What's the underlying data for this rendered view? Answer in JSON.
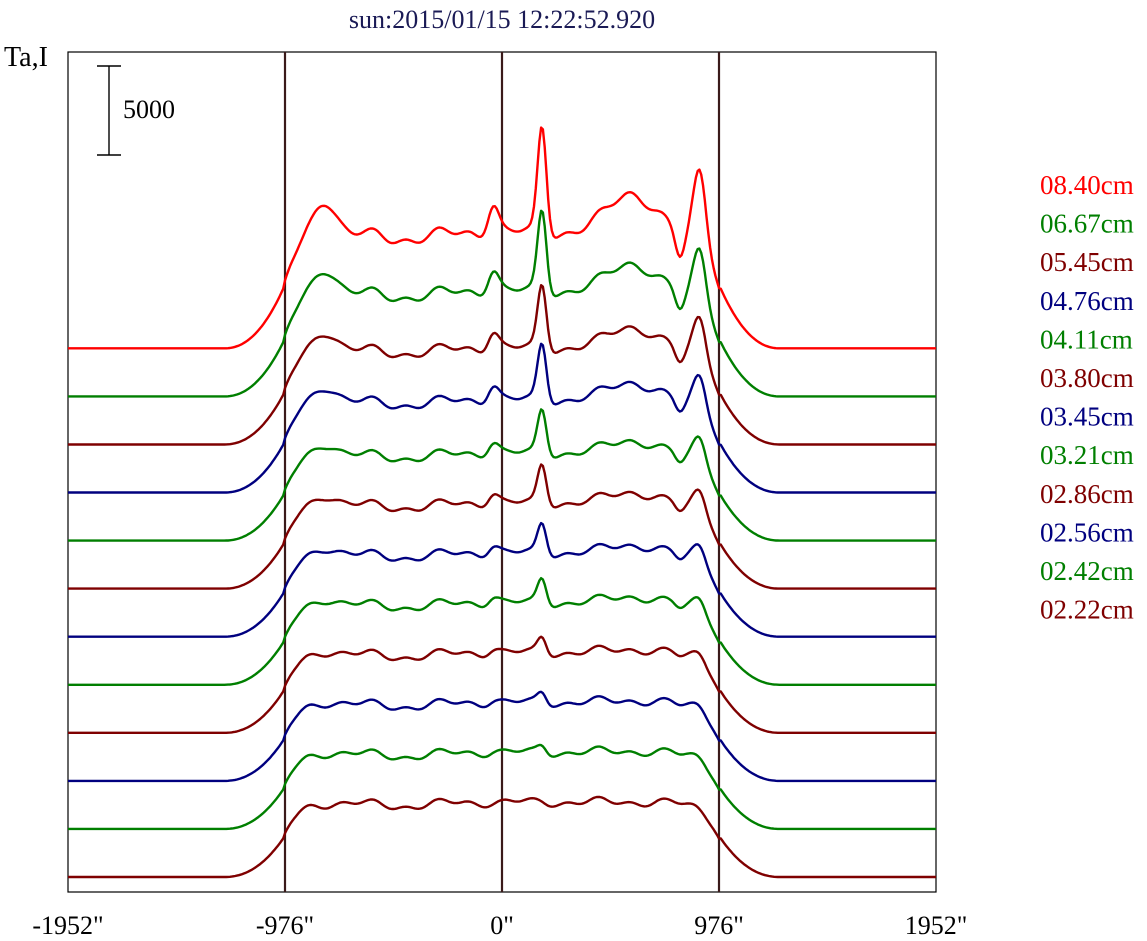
{
  "chart_data": {
    "type": "line",
    "title": "sun:2015/01/15 12:22:52.920",
    "ylabel": "Ta,I",
    "scale_bar_label": "5000",
    "scale_bar_value": 5000,
    "x_ticks": [
      {
        "value": -1952,
        "label": "-1952\""
      },
      {
        "value": -976,
        "label": "-976\""
      },
      {
        "value": 0,
        "label": "0\""
      },
      {
        "value": 976,
        "label": "976\""
      },
      {
        "value": 1952,
        "label": "1952\""
      }
    ],
    "xlim": [
      -1952,
      1952
    ],
    "vertical_markers": [
      -976,
      0,
      976
    ],
    "grid": false,
    "legend_placement": "right",
    "y_offset_step": 2700,
    "series": [
      {
        "name": "02.22cm",
        "color": "#7f0000",
        "baseline_offset": 0,
        "limb_height": 4200,
        "peak": 50,
        "west_peak": 50
      },
      {
        "name": "02.42cm",
        "color": "#007f00",
        "baseline_offset": 2700,
        "limb_height": 4300,
        "peak": 400,
        "west_peak": 150
      },
      {
        "name": "02.56cm",
        "color": "#00007f",
        "baseline_offset": 5400,
        "limb_height": 4400,
        "peak": 600,
        "west_peak": 250
      },
      {
        "name": "02.86cm",
        "color": "#7f0000",
        "baseline_offset": 8100,
        "limb_height": 4500,
        "peak": 900,
        "west_peak": 400
      },
      {
        "name": "03.21cm",
        "color": "#007f00",
        "baseline_offset": 10800,
        "limb_height": 4600,
        "peak": 1400,
        "west_peak": 700
      },
      {
        "name": "03.45cm",
        "color": "#00007f",
        "baseline_offset": 13500,
        "limb_height": 4700,
        "peak": 1700,
        "west_peak": 900
      },
      {
        "name": "03.80cm",
        "color": "#7f0000",
        "baseline_offset": 16200,
        "limb_height": 4800,
        "peak": 2200,
        "west_peak": 1200
      },
      {
        "name": "04.11cm",
        "color": "#007f00",
        "baseline_offset": 18900,
        "limb_height": 4900,
        "peak": 2500,
        "west_peak": 1400
      },
      {
        "name": "04.76cm",
        "color": "#00007f",
        "baseline_offset": 21600,
        "limb_height": 5200,
        "peak": 3200,
        "west_peak": 1900
      },
      {
        "name": "05.45cm",
        "color": "#7f0000",
        "baseline_offset": 24300,
        "limb_height": 5400,
        "peak": 3600,
        "west_peak": 2300
      },
      {
        "name": "06.67cm",
        "color": "#007f00",
        "baseline_offset": 27000,
        "limb_height": 5900,
        "peak": 4600,
        "west_peak": 3000
      },
      {
        "name": "08.40cm",
        "color": "#ff0000",
        "baseline_offset": 29700,
        "limb_height": 6500,
        "peak": 6000,
        "west_peak": 4200
      }
    ],
    "colors": {
      "axes": "#000000",
      "markers": "#3f1f1f",
      "title": "#000040"
    }
  }
}
